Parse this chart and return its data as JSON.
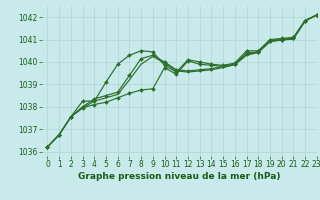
{
  "bg_color": "#c8eaea",
  "grid_color": "#b0d4d4",
  "line_color": "#2d6e2d",
  "xlabel": "Graphe pression niveau de la mer (hPa)",
  "ylim": [
    1035.8,
    1042.5
  ],
  "xlim": [
    -0.5,
    23
  ],
  "yticks": [
    1036,
    1037,
    1038,
    1039,
    1040,
    1041,
    1042
  ],
  "xticks": [
    0,
    1,
    2,
    3,
    4,
    5,
    6,
    7,
    8,
    9,
    10,
    11,
    12,
    13,
    14,
    15,
    16,
    17,
    18,
    19,
    20,
    21,
    22,
    23
  ],
  "series": [
    [
      1036.2,
      1036.75,
      1037.55,
      1038.25,
      1038.25,
      1039.1,
      1039.9,
      1040.3,
      1040.5,
      1040.45,
      1039.85,
      1039.55,
      1040.1,
      1040.0,
      1039.9,
      1039.85,
      1039.95,
      1040.5,
      1040.5,
      1041.0,
      1041.05,
      1041.1,
      1041.85,
      1042.1
    ],
    [
      1036.2,
      1036.75,
      1037.55,
      1038.0,
      1038.35,
      1038.5,
      1038.65,
      1039.4,
      1040.15,
      1040.3,
      1040.0,
      1039.65,
      1039.6,
      1039.65,
      1039.7,
      1039.8,
      1039.9,
      1040.35,
      1040.45,
      1040.95,
      1041.0,
      1041.05,
      1041.85,
      1042.1
    ],
    [
      1036.2,
      1036.75,
      1037.55,
      1037.95,
      1038.25,
      1038.4,
      1038.55,
      1039.2,
      1039.9,
      1040.25,
      1039.95,
      1039.6,
      1039.55,
      1039.6,
      1039.65,
      1039.75,
      1039.88,
      1040.3,
      1040.42,
      1040.9,
      1040.98,
      1041.02,
      1041.82,
      1042.1
    ],
    [
      1036.2,
      1036.75,
      1037.55,
      1037.95,
      1038.1,
      1038.2,
      1038.4,
      1038.6,
      1038.75,
      1038.8,
      1039.75,
      1039.45,
      1040.05,
      1039.9,
      1039.85,
      1039.8,
      1039.9,
      1040.4,
      1040.45,
      1040.95,
      1041.0,
      1041.05,
      1041.85,
      1042.1
    ]
  ],
  "font_color": "#1a5c1a",
  "tick_fontsize": 5.5,
  "xlabel_fontsize": 6.5,
  "linewidth": 0.85,
  "markersize": 2.0
}
